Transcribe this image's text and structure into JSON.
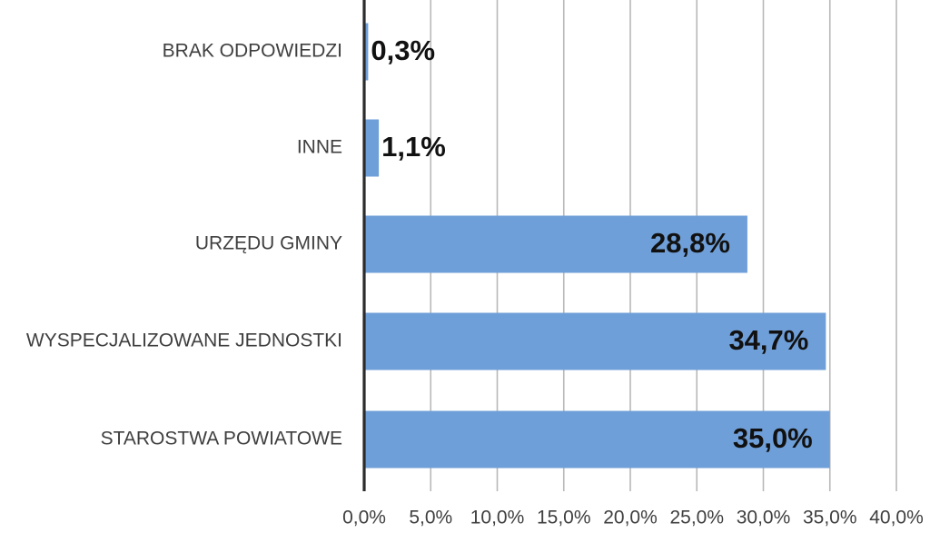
{
  "chart_data": {
    "type": "bar",
    "orientation": "horizontal",
    "title": "",
    "xlabel": "",
    "ylabel": "",
    "xlim": [
      0,
      40
    ],
    "ylim": null,
    "grid": true,
    "legend": "none",
    "categories": [
      "BRAK ODPOWIEDZI",
      "INNE",
      "URZĘDU GMINY",
      "WYSPECJALIZOWANE JEDNOSTKI",
      "STAROSTWA POWIATOWE"
    ],
    "values": [
      0.3,
      1.1,
      28.8,
      34.7,
      35.0
    ],
    "value_labels": [
      "0,3%",
      "1,1%",
      "28,8%",
      "34,7%",
      "35,0%"
    ],
    "x_ticks": [
      0,
      5,
      10,
      15,
      20,
      25,
      30,
      35,
      40
    ],
    "x_tick_labels": [
      "0,0%",
      "5,0%",
      "10,0%",
      "15,0%",
      "20,0%",
      "25,0%",
      "30,0%",
      "35,0%",
      "40,0%"
    ],
    "colors": {
      "bar": "#6f9fd8",
      "grid": "#b8b8b8",
      "axis": "#2b2b2b",
      "text": "#3f3f3f",
      "value_text": "#111111"
    }
  }
}
